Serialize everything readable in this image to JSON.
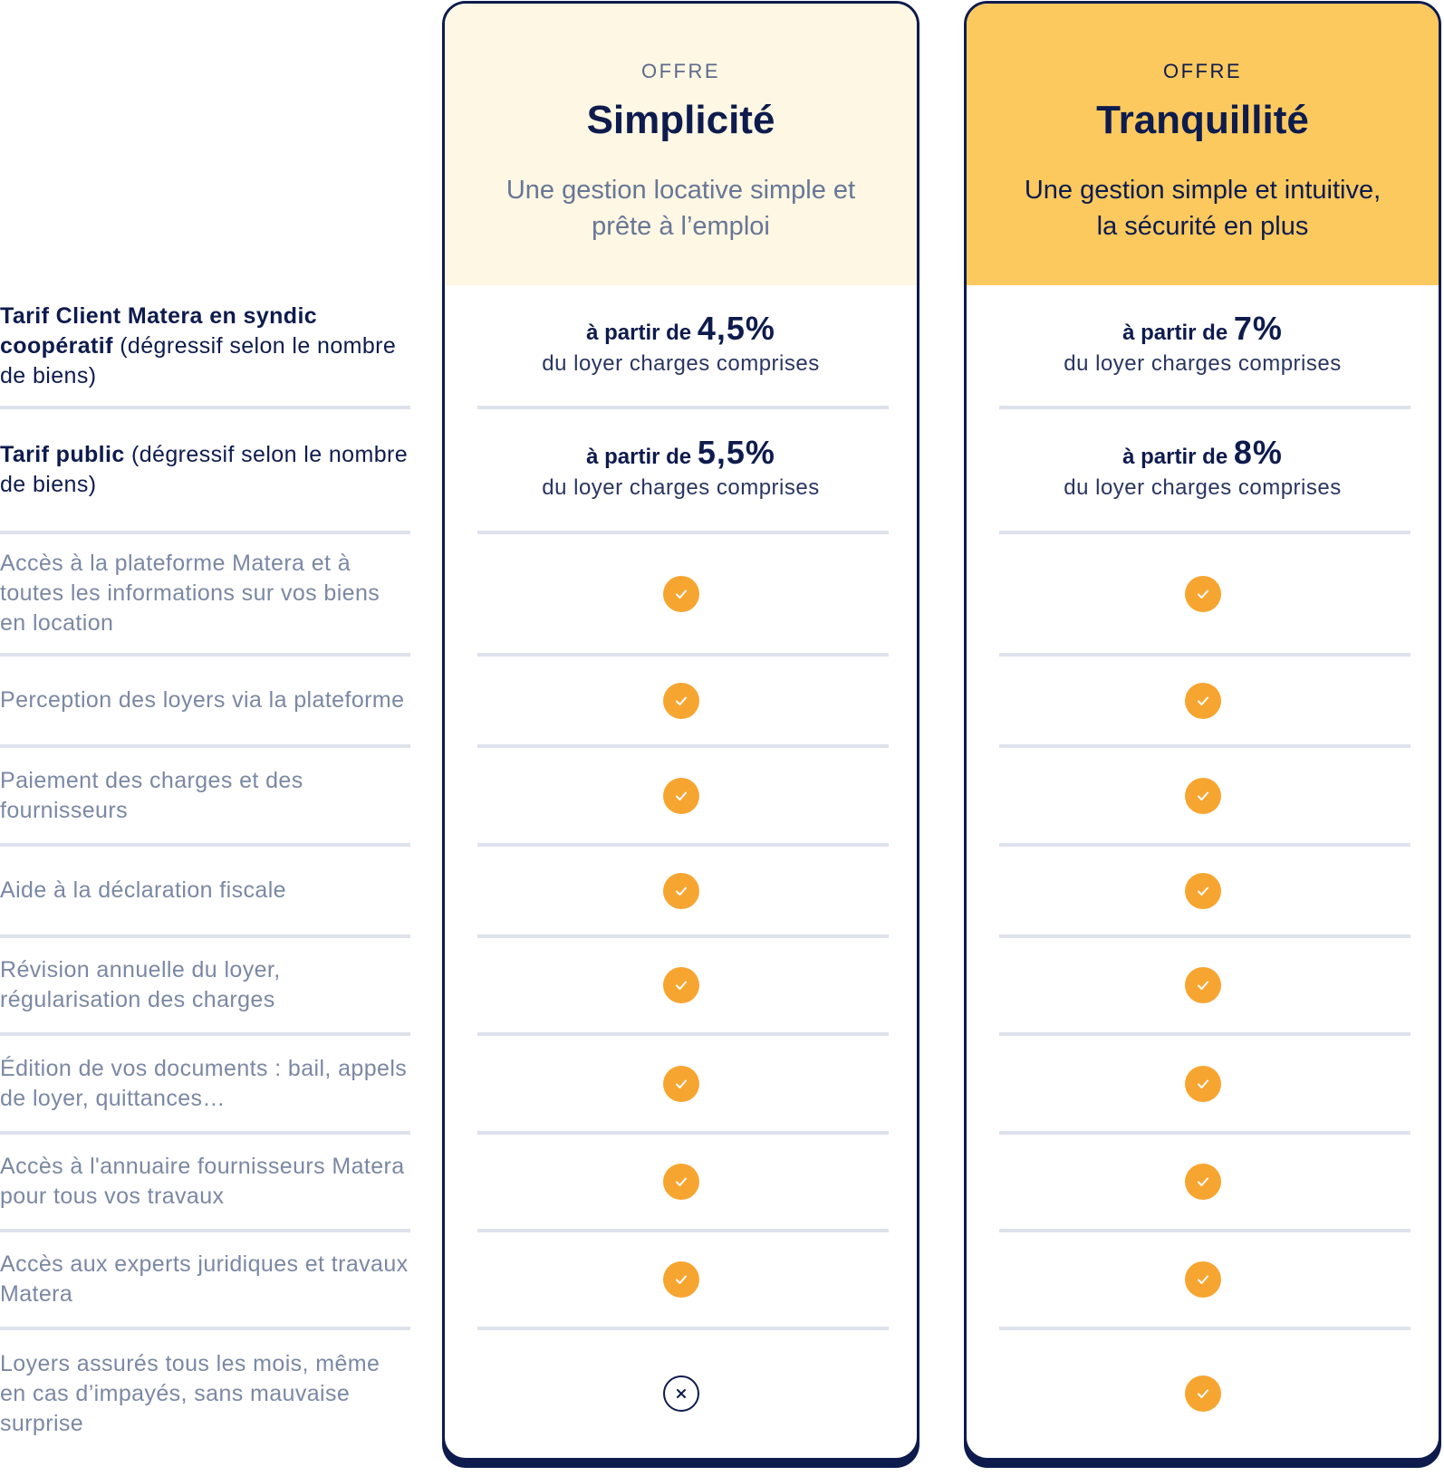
{
  "features": [
    {
      "label_bold": "Tarif Client Matera en syndic coopératif",
      "label_rest": "  (dégressif selon le nombre de biens)",
      "dark": true
    },
    {
      "label_bold": "Tarif public",
      "label_rest": " (dégressif selon le nombre de biens)",
      "dark": true
    },
    {
      "label_bold": "",
      "label_rest": "Accès à la plateforme Matera et à toutes les informations sur vos biens en location",
      "dark": false
    },
    {
      "label_bold": "",
      "label_rest": "Perception des loyers via la plateforme",
      "dark": false
    },
    {
      "label_bold": "",
      "label_rest": "Paiement des charges et des fournisseurs",
      "dark": false
    },
    {
      "label_bold": "",
      "label_rest": "Aide à la déclaration fiscale",
      "dark": false
    },
    {
      "label_bold": "",
      "label_rest": "Révision annuelle du loyer, régularisation des charges",
      "dark": false
    },
    {
      "label_bold": "",
      "label_rest": "Édition de vos documents : bail, appels de loyer, quittances…",
      "dark": false
    },
    {
      "label_bold": "",
      "label_rest": "Accès à l'annuaire fournisseurs Matera pour tous vos travaux",
      "dark": false
    },
    {
      "label_bold": "",
      "label_rest": "Accès aux experts juridiques et travaux Matera",
      "dark": false
    },
    {
      "label_bold": "",
      "label_rest": "Loyers assurés tous les mois, même en cas d’impayés, sans mauvaise surprise",
      "dark": false
    }
  ],
  "plans": [
    {
      "id": "simplicite",
      "kicker": "OFFRE",
      "name": "Simplicité",
      "tagline": "Une gestion locative simple et prête à l’emploi",
      "header_color": "#fdf7e3",
      "prices": [
        {
          "prefix": "à partir de",
          "value": "4,5%",
          "suffix": "du loyer charges comprises"
        },
        {
          "prefix": "à partir de",
          "value": "5,5%",
          "suffix": "du loyer charges comprises"
        }
      ],
      "included": [
        true,
        true,
        true,
        true,
        true,
        true,
        true,
        true,
        false
      ]
    },
    {
      "id": "tranquillite",
      "kicker": "OFFRE",
      "name": "Tranquillité",
      "tagline": "Une gestion simple et intuitive, la sécurité en plus",
      "header_color": "#fbc95e",
      "prices": [
        {
          "prefix": "à partir de",
          "value": "7%",
          "suffix": "du loyer charges comprises"
        },
        {
          "prefix": "à partir de",
          "value": "8%",
          "suffix": "du loyer charges comprises"
        }
      ],
      "included": [
        true,
        true,
        true,
        true,
        true,
        true,
        true,
        true,
        true
      ]
    }
  ],
  "colors": {
    "navy": "#0e1b4d",
    "check": "#f7a531",
    "muted": "#7b88a3"
  },
  "icons": {
    "included": "check-circle-icon",
    "excluded": "cross-circle-icon"
  }
}
